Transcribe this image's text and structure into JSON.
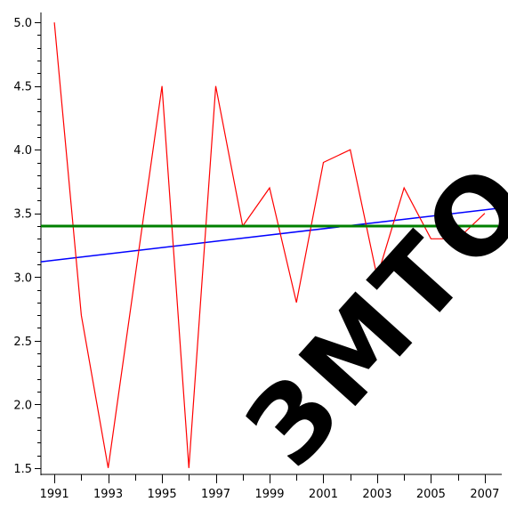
{
  "chart_data": {
    "type": "line",
    "title": "",
    "xlabel": "",
    "ylabel": "",
    "xlim": [
      1990.5,
      2007.5
    ],
    "ylim": [
      1.45,
      5.05
    ],
    "grid": false,
    "x_ticks": [
      1991,
      1993,
      1995,
      1997,
      1999,
      2001,
      2003,
      2005,
      2007
    ],
    "y_ticks": [
      1.5,
      2.0,
      2.5,
      3.0,
      3.5,
      4.0,
      4.5,
      5.0
    ],
    "x_tick_labels": [
      "1991",
      "1993",
      "1995",
      "1997",
      "1999",
      "2001",
      "2003",
      "2005",
      "2007"
    ],
    "y_tick_labels": [
      "1.5",
      "2.0",
      "2.5",
      "3.0",
      "3.5",
      "4.0",
      "4.5",
      "5.0"
    ],
    "series": [
      {
        "color": "#ff0000",
        "x": [
          1991,
          1992,
          1993,
          1994,
          1995,
          1996,
          1997,
          1998,
          1999,
          2000,
          2001,
          2002,
          2003,
          2004,
          2005,
          2006,
          2007
        ],
        "y": [
          5.0,
          2.7,
          1.5,
          3.0,
          4.5,
          1.5,
          4.5,
          3.4,
          3.7,
          2.8,
          3.9,
          4.0,
          3.0,
          3.7,
          3.3,
          3.3,
          3.5
        ]
      },
      {
        "color": "#0000ff",
        "x": [
          1990.5,
          2007.5
        ],
        "y": [
          3.12,
          3.54
        ]
      },
      {
        "color": "#008000",
        "x": [
          1990.5,
          2007.5
        ],
        "y": [
          3.4,
          3.4
        ]
      }
    ]
  },
  "watermark": {
    "text": "ЗМТО",
    "color": "#000000"
  }
}
